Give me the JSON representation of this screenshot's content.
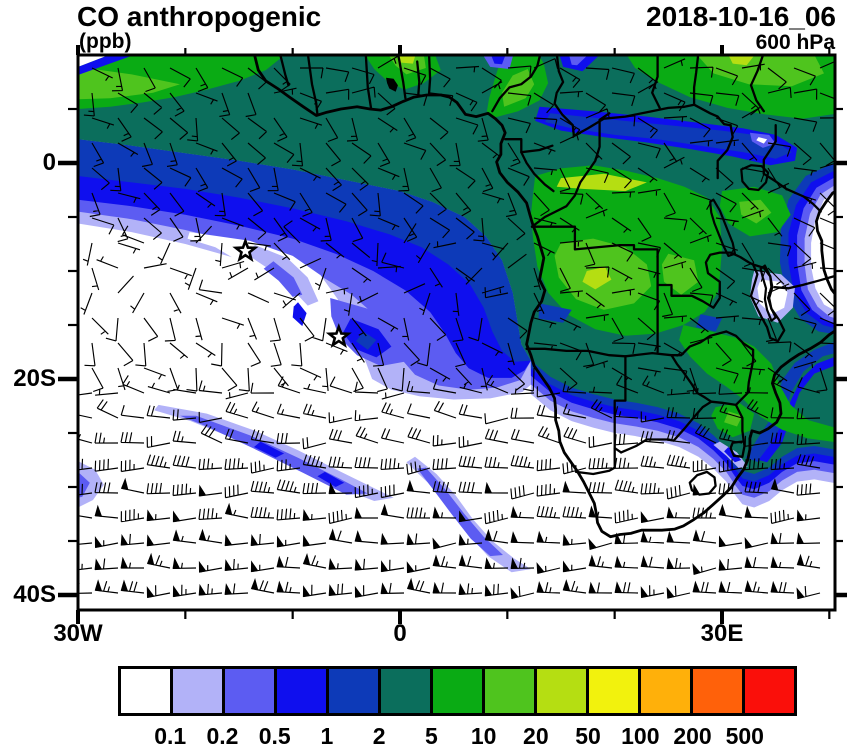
{
  "header": {
    "title": "CO anthropogenic",
    "units_label": "(ppb)",
    "datetime": "2018-10-16_06",
    "level": "600 hPa"
  },
  "axes": {
    "x": {
      "major": [
        {
          "label": "30W",
          "lon": -30
        },
        {
          "label": "0",
          "lon": 0
        },
        {
          "label": "30E",
          "lon": 30
        }
      ],
      "minor_lons": [
        -20,
        -10,
        10,
        20,
        40
      ]
    },
    "y": {
      "major": [
        {
          "label": "0",
          "lat": 0
        },
        {
          "label": "20S",
          "lat": -20
        },
        {
          "label": "40S",
          "lat": -40
        }
      ],
      "minor_lats": [
        5,
        -5,
        -10,
        -15,
        -25,
        -30,
        -35
      ]
    }
  },
  "colorbar": {
    "labels": [
      "0.1",
      "0.2",
      "0.5",
      "1",
      "2",
      "5",
      "10",
      "20",
      "50",
      "100",
      "200",
      "500"
    ],
    "colors": [
      "#ffffff",
      "#b2b2f8",
      "#5c5cf2",
      "#0f0fee",
      "#0d3ab8",
      "#0b6e5c",
      "#0aab14",
      "#4fc41e",
      "#b5de12",
      "#f2f20d",
      "#ffb00a",
      "#ff610a",
      "#fa0f0a"
    ]
  },
  "chart_data": {
    "type": "heatmap",
    "title": "CO anthropogenic",
    "units": "ppb",
    "valid_datetime": "2018-10-16_06",
    "pressure_level": "600 hPa",
    "projection": "cylindrical equidistant over Africa and the South Atlantic",
    "map_extent": {
      "lon_min": -30,
      "lon_max": 40.5,
      "lat_min": -41.4,
      "lat_max": 10.0
    },
    "contour_levels_ppb": [
      0.1,
      0.2,
      0.5,
      1,
      2,
      5,
      10,
      20,
      50,
      100,
      200,
      500
    ],
    "palette": [
      "#ffffff",
      "#b2b2f8",
      "#5c5cf2",
      "#0f0fee",
      "#0d3ab8",
      "#0b6e5c",
      "#0aab14",
      "#4fc41e",
      "#b5de12",
      "#f2f20d",
      "#ffb00a",
      "#ff610a",
      "#fa0f0a"
    ],
    "legend_position": "bottom",
    "grid": false,
    "features": [
      {
        "name": "continental CO maximum",
        "value_ppb": "2-50",
        "desc": "dark teal to green field over equatorial and southern Africa, brightest greens over Congo-Zambia, Cameroon-West Africa and the top-right (East Africa) corner"
      },
      {
        "name": "Atlantic outflow plume",
        "value_ppb": "0.1-2",
        "desc": "blue/violet/lavender plume streaming southwest from the Gulf of Guinea across the tropical Atlantic to the left edge"
      },
      {
        "name": "clean sectors",
        "value_ppb": "<0.1",
        "desc": "white areas over the subtropical South Atlantic, South African interior and western Indian Ocean coast notch"
      },
      {
        "name": "South Atlantic filament",
        "value_ppb": "0.1-1",
        "desc": "thin lavender-violet-blue filament stretching ENE-WSW near 23S-31S, plus a second filament curving toward the Cape"
      }
    ],
    "markers": [
      {
        "name": "island star (Ascension)",
        "lon": -14.4,
        "lat": -8.15
      },
      {
        "name": "island star (St Helena)",
        "lon": -5.7,
        "lat": -16.1
      }
    ],
    "wind_overlay": {
      "type": "barbs",
      "units": "kt",
      "half_barb_kt": 5,
      "full_barb_kt": 10,
      "pennant_kt": 50,
      "regimes": [
        {
          "lat_band": "10N-5S",
          "desc": "easterly to southeasterly 5-15 kt"
        },
        {
          "lat_band": "5S-14S ocean",
          "desc": "light variable 3-10 kt around the subtropical high"
        },
        {
          "lat_band": "14S-21S",
          "desc": "southeasterly trades 5-12 kt"
        },
        {
          "lat_band": "21S-28S",
          "desc": "westerlies strengthening 10-35 kt"
        },
        {
          "lat_band": "28S-41S",
          "desc": "strong westerlies 40-65 kt with pennants"
        }
      ]
    }
  }
}
